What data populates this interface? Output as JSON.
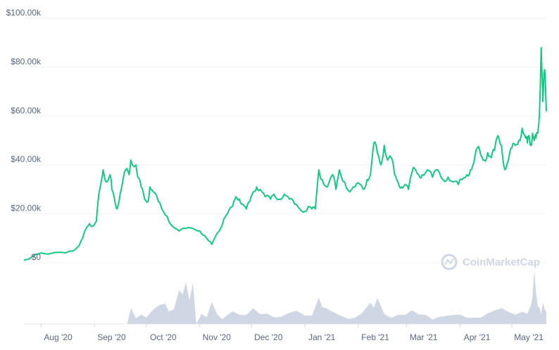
{
  "chart_data": {
    "type": "line",
    "title": "",
    "xlabel": "",
    "ylabel": "",
    "watermark": "CoinMarketCap",
    "price_color": "#16c784",
    "volume_color": "#cfd6e4",
    "grid": true,
    "ylim": [
      0,
      100000
    ],
    "y_ticks": [
      {
        "value": 0,
        "label": "$0"
      },
      {
        "value": 20000,
        "label": "$20.00k"
      },
      {
        "value": 40000,
        "label": "$40.00k"
      },
      {
        "value": 60000,
        "label": "$60.00k"
      },
      {
        "value": 80000,
        "label": "$80.00k"
      },
      {
        "value": 100000,
        "label": "$100.00k"
      }
    ],
    "x_ticks": [
      {
        "date": "2020-08-01",
        "label": "Aug '20"
      },
      {
        "date": "2020-09-01",
        "label": "Sep '20"
      },
      {
        "date": "2020-10-01",
        "label": "Oct '20"
      },
      {
        "date": "2020-11-01",
        "label": "Nov '20"
      },
      {
        "date": "2020-12-01",
        "label": "Dec '20"
      },
      {
        "date": "2021-01-01",
        "label": "Jan '21"
      },
      {
        "date": "2021-02-01",
        "label": "Feb '21"
      },
      {
        "date": "2021-03-01",
        "label": "Mar '21"
      },
      {
        "date": "2021-04-01",
        "label": "Apr '21"
      },
      {
        "date": "2021-05-01",
        "label": "May '21"
      }
    ],
    "xlim": [
      "2020-07-22",
      "2021-05-21"
    ],
    "series": [
      {
        "type": "line",
        "x": [
          "2020-07-22",
          "2020-07-25",
          "2020-07-27",
          "2020-07-29",
          "2020-08-01",
          "2020-08-05",
          "2020-08-10",
          "2020-08-15",
          "2020-08-18",
          "2020-08-20",
          "2020-08-23",
          "2020-08-25",
          "2020-08-27",
          "2020-08-29",
          "2020-08-31",
          "2020-09-02",
          "2020-09-03",
          "2020-09-04",
          "2020-09-06",
          "2020-09-08",
          "2020-09-10",
          "2020-09-11",
          "2020-09-13",
          "2020-09-14",
          "2020-09-16",
          "2020-09-17",
          "2020-09-19",
          "2020-09-21",
          "2020-09-22",
          "2020-09-25",
          "2020-09-26",
          "2020-09-28",
          "2020-09-30",
          "2020-10-02",
          "2020-10-03",
          "2020-10-05",
          "2020-10-08",
          "2020-10-10",
          "2020-10-13",
          "2020-10-16",
          "2020-10-20",
          "2020-10-24",
          "2020-10-28",
          "2020-11-01",
          "2020-11-04",
          "2020-11-06",
          "2020-11-08",
          "2020-11-11",
          "2020-11-13",
          "2020-11-15",
          "2020-11-17",
          "2020-11-20",
          "2020-11-22",
          "2020-11-24",
          "2020-11-26",
          "2020-11-28",
          "2020-11-30",
          "2020-12-02",
          "2020-12-04",
          "2020-12-06",
          "2020-12-09",
          "2020-12-12",
          "2020-12-14",
          "2020-12-17",
          "2020-12-20",
          "2020-12-23",
          "2020-12-26",
          "2020-12-29",
          "2021-01-01",
          "2021-01-03",
          "2021-01-05",
          "2021-01-07",
          "2021-01-09",
          "2021-01-11",
          "2021-01-14",
          "2021-01-17",
          "2021-01-19",
          "2021-01-21",
          "2021-01-24",
          "2021-01-27",
          "2021-01-30",
          "2021-02-02",
          "2021-02-04",
          "2021-02-06",
          "2021-02-08",
          "2021-02-10",
          "2021-02-12",
          "2021-02-14",
          "2021-02-16",
          "2021-02-18",
          "2021-02-20",
          "2021-02-22",
          "2021-02-24",
          "2021-02-26",
          "2021-02-28",
          "2021-03-02",
          "2021-03-05",
          "2021-03-08",
          "2021-03-10",
          "2021-03-13",
          "2021-03-16",
          "2021-03-19",
          "2021-03-22",
          "2021-03-25",
          "2021-03-28",
          "2021-03-31",
          "2021-04-02",
          "2021-04-05",
          "2021-04-07",
          "2021-04-09",
          "2021-04-11",
          "2021-04-13",
          "2021-04-15",
          "2021-04-17",
          "2021-04-19",
          "2021-04-21",
          "2021-04-23",
          "2021-04-25",
          "2021-04-27",
          "2021-04-29",
          "2021-05-01",
          "2021-05-03",
          "2021-05-05",
          "2021-05-07",
          "2021-05-09",
          "2021-05-10",
          "2021-05-11",
          "2021-05-12",
          "2021-05-13",
          "2021-05-14",
          "2021-05-15",
          "2021-05-16",
          "2021-05-17",
          "2021-05-18",
          "2021-05-19",
          "2021-05-20",
          "2021-05-21"
        ],
        "values": [
          1000,
          1500,
          2500,
          3500,
          4000,
          3500,
          4200,
          4000,
          4800,
          5000,
          7000,
          10000,
          14000,
          16000,
          15000,
          17000,
          25000,
          30000,
          38000,
          33000,
          36000,
          30000,
          24000,
          22000,
          29000,
          32000,
          38000,
          36000,
          42000,
          40000,
          35000,
          31000,
          26000,
          25000,
          31000,
          29000,
          25000,
          22000,
          19000,
          15000,
          13000,
          14000,
          14000,
          13000,
          11000,
          9000,
          7500,
          12000,
          14000,
          18000,
          20000,
          23000,
          27000,
          26000,
          24000,
          22000,
          25000,
          29000,
          31000,
          30000,
          27000,
          26000,
          28000,
          26000,
          28000,
          26000,
          24000,
          22000,
          21000,
          23000,
          22000,
          22000,
          38000,
          34000,
          31000,
          36000,
          30000,
          38000,
          33000,
          29000,
          31000,
          32000,
          30000,
          34000,
          36000,
          49000,
          45000,
          40000,
          48000,
          42000,
          43000,
          36000,
          33000,
          31000,
          32000,
          30000,
          39000,
          36000,
          36000,
          38000,
          35000,
          38000,
          34000,
          35000,
          33000,
          32000,
          34000,
          36000,
          38000,
          41000,
          47000,
          44000,
          42000,
          45000,
          43000,
          46000,
          52000,
          48000,
          38000,
          42000,
          47000,
          48000,
          50000,
          55000,
          51000,
          49000,
          52000,
          48000,
          53000,
          50000,
          51000,
          53000,
          61000,
          88000,
          66000,
          79000,
          62000
        ]
      }
    ],
    "volume_series": {
      "x": [
        "2020-07-22",
        "2020-09-20",
        "2020-09-22",
        "2020-09-25",
        "2020-09-28",
        "2020-10-01",
        "2020-10-03",
        "2020-10-06",
        "2020-10-09",
        "2020-10-12",
        "2020-10-14",
        "2020-10-17",
        "2020-10-20",
        "2020-10-22",
        "2020-10-24",
        "2020-10-26",
        "2020-10-28",
        "2020-10-30",
        "2020-11-02",
        "2020-11-05",
        "2020-11-08",
        "2020-11-11",
        "2020-11-14",
        "2020-11-17",
        "2020-11-20",
        "2020-11-24",
        "2020-11-28",
        "2020-12-02",
        "2020-12-06",
        "2020-12-10",
        "2020-12-14",
        "2020-12-18",
        "2020-12-22",
        "2020-12-27",
        "2021-01-01",
        "2021-01-05",
        "2021-01-09",
        "2021-01-11",
        "2021-01-13",
        "2021-01-17",
        "2021-01-21",
        "2021-01-26",
        "2021-01-30",
        "2021-02-03",
        "2021-02-08",
        "2021-02-10",
        "2021-02-12",
        "2021-02-16",
        "2021-02-20",
        "2021-02-24",
        "2021-02-28",
        "2021-03-04",
        "2021-03-08",
        "2021-03-12",
        "2021-03-16",
        "2021-03-20",
        "2021-03-24",
        "2021-03-28",
        "2021-04-01",
        "2021-04-05",
        "2021-04-09",
        "2021-04-13",
        "2021-04-17",
        "2021-04-21",
        "2021-04-25",
        "2021-04-29",
        "2021-05-03",
        "2021-05-07",
        "2021-05-10",
        "2021-05-12",
        "2021-05-13",
        "2021-05-14",
        "2021-05-15",
        "2021-05-16",
        "2021-05-17",
        "2021-05-18",
        "2021-05-19",
        "2021-05-20",
        "2021-05-21"
      ],
      "values": [
        0,
        0,
        25,
        10,
        20,
        15,
        20,
        25,
        30,
        35,
        25,
        30,
        62,
        50,
        70,
        40,
        75,
        0,
        20,
        10,
        35,
        15,
        10,
        20,
        25,
        15,
        12,
        25,
        18,
        22,
        15,
        12,
        15,
        20,
        15,
        18,
        50,
        30,
        25,
        18,
        15,
        12,
        15,
        20,
        35,
        25,
        45,
        20,
        15,
        18,
        14,
        20,
        15,
        18,
        12,
        15,
        13,
        12,
        14,
        12,
        15,
        14,
        18,
        20,
        25,
        22,
        20,
        25,
        18,
        30,
        45,
        95,
        60,
        35,
        30,
        15,
        35,
        25,
        25
      ]
    }
  }
}
